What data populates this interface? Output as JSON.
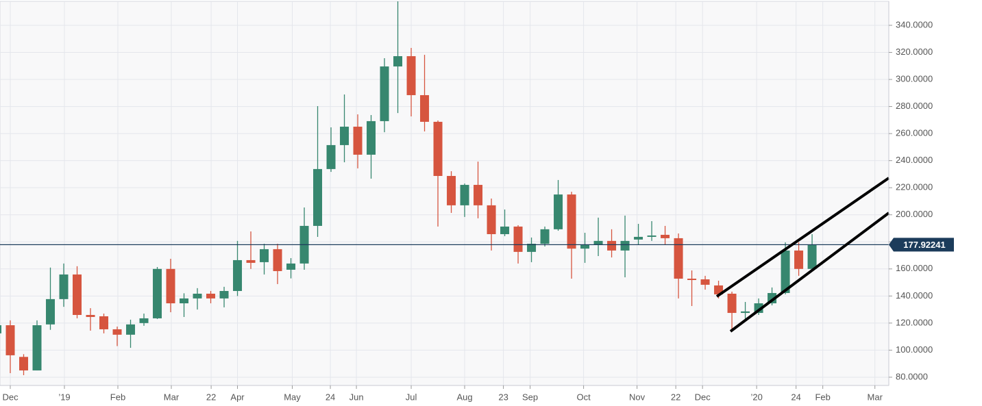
{
  "chart_data": {
    "type": "candlestick",
    "up_color": "#37876f",
    "down_color": "#d6553f",
    "last_price_color": "#1c3c5b",
    "grid": true,
    "last_price": 177.92241,
    "x": [
      -1,
      0,
      1,
      2,
      3,
      4,
      5,
      6,
      7,
      8,
      9,
      10,
      11,
      12,
      13,
      14,
      15,
      16,
      17,
      18,
      19,
      20,
      21,
      22,
      23,
      24,
      25,
      26,
      27,
      28,
      29,
      30,
      31,
      32,
      33,
      34,
      35,
      36,
      37,
      38,
      39,
      40,
      41,
      42,
      43,
      44,
      45,
      46,
      47,
      48,
      49,
      50,
      51,
      52,
      53,
      54,
      55,
      56,
      57,
      58,
      59,
      60
    ],
    "open": [
      112.4,
      118.4,
      95,
      85,
      119,
      137.7,
      155.9,
      126,
      125,
      115.4,
      111.4,
      120,
      123.5,
      160,
      134.6,
      138.2,
      141.7,
      138.2,
      143.7,
      166.5,
      165,
      174.6,
      159.4,
      164,
      191.8,
      233.8,
      251.5,
      265.1,
      244.4,
      269.2,
      309.6,
      317.2,
      288.4,
      268.7,
      228.7,
      207,
      222.1,
      207,
      185.7,
      191.3,
      172.6,
      178.6,
      189.3,
      215,
      175,
      177.6,
      180.7,
      173.6,
      181.7,
      183.7,
      185.2,
      182.7,
      152.8,
      152.3,
      147.8,
      141.7,
      127.5,
      127.5,
      134.6,
      142.2,
      173.6,
      160
    ],
    "high": [
      122,
      122,
      97,
      122,
      161,
      164,
      162,
      131,
      127,
      117.4,
      122.5,
      127,
      161.4,
      167.5,
      142,
      145.8,
      143.7,
      146.8,
      180.7,
      187.7,
      178.6,
      178.6,
      168,
      205.4,
      280.3,
      264.6,
      288.9,
      274.2,
      273.7,
      315.7,
      357.7,
      323.3,
      318.2,
      269.7,
      232.2,
      223.1,
      239.3,
      212,
      203.9,
      192.3,
      183.2,
      191.3,
      225.7,
      217,
      186.7,
      197.9,
      189.3,
      199.4,
      193.3,
      195.3,
      191.8,
      186.2,
      158.9,
      154.9,
      151.3,
      143.2,
      135.6,
      138.2,
      146.3,
      179.6,
      179.6,
      185.7
    ],
    "low": [
      110,
      83,
      81.5,
      85,
      115,
      132,
      123.5,
      114.4,
      112.4,
      103,
      101.7,
      118,
      123,
      128,
      124.5,
      130,
      134.6,
      131.6,
      140,
      160,
      155.9,
      148.8,
      153,
      159.4,
      183.7,
      231.7,
      238.8,
      234.3,
      226.7,
      261,
      275.2,
      272.7,
      261.6,
      191.3,
      201.4,
      198.4,
      197.4,
      173.6,
      184.2,
      164,
      165,
      176.6,
      188.2,
      152.8,
      164.5,
      169.5,
      168.5,
      153.8,
      177.6,
      180.7,
      178.1,
      138.2,
      132.6,
      144.7,
      138.2,
      115.4,
      122.5,
      126,
      133.1,
      141.2,
      154.9,
      158.9
    ],
    "close": [
      118.4,
      96.2,
      85,
      118.4,
      137.7,
      155.9,
      126,
      124.5,
      115.4,
      111.4,
      119,
      123.5,
      160,
      134.6,
      138.2,
      141.7,
      138.2,
      143.7,
      166.5,
      164.5,
      174.6,
      158.4,
      164,
      191.8,
      233.8,
      251.5,
      265.1,
      244.4,
      269.2,
      309.6,
      317.2,
      288.4,
      268.7,
      228.7,
      207,
      222.1,
      207,
      185.7,
      191.3,
      172.6,
      178.6,
      189.3,
      215,
      175,
      177.6,
      180.7,
      173.6,
      180.7,
      183.7,
      184.7,
      182.7,
      152.8,
      151.8,
      148.3,
      141.2,
      127.5,
      128.6,
      134.6,
      142.2,
      173.6,
      160,
      178.1
    ],
    "xlim": [
      -0.77,
      65.74
    ],
    "ylim": [
      73.9,
      358.7
    ],
    "xticks": [
      {
        "value": 0,
        "label": "Dec"
      },
      {
        "value": 4.05,
        "label": "’19"
      },
      {
        "value": 8.05,
        "label": "Feb"
      },
      {
        "value": 12.05,
        "label": "Mar"
      },
      {
        "value": 15.03,
        "label": "22"
      },
      {
        "value": 17,
        "label": "Apr"
      },
      {
        "value": 21.1,
        "label": "May"
      },
      {
        "value": 23.95,
        "label": "24"
      },
      {
        "value": 25.9,
        "label": "Jun"
      },
      {
        "value": 30,
        "label": "Jul"
      },
      {
        "value": 34,
        "label": "Aug"
      },
      {
        "value": 36.9,
        "label": "23"
      },
      {
        "value": 38.9,
        "label": "Sep"
      },
      {
        "value": 42.9,
        "label": "Oct"
      },
      {
        "value": 46.9,
        "label": "Nov"
      },
      {
        "value": 49.8,
        "label": "22"
      },
      {
        "value": 51.8,
        "label": "Dec"
      },
      {
        "value": 55.85,
        "label": "’20"
      },
      {
        "value": 58.8,
        "label": "24"
      },
      {
        "value": 60.8,
        "label": "Feb"
      },
      {
        "value": 64.7,
        "label": "Mar"
      }
    ],
    "yticks": [
      {
        "value": 80,
        "label": "80.0000"
      },
      {
        "value": 100,
        "label": "100.0000"
      },
      {
        "value": 120,
        "label": "120.0000"
      },
      {
        "value": 140,
        "label": "140.0000"
      },
      {
        "value": 160,
        "label": "160.0000"
      },
      {
        "value": 180,
        "label": "180.0000"
      },
      {
        "value": 200,
        "label": "200.0000"
      },
      {
        "value": 220,
        "label": "220.0000"
      },
      {
        "value": 240,
        "label": "240.0000"
      },
      {
        "value": 260,
        "label": "260.0000"
      },
      {
        "value": 280,
        "label": "280.0000"
      },
      {
        "value": 300,
        "label": "300.0000"
      },
      {
        "value": 320,
        "label": "320.0000"
      },
      {
        "value": 340,
        "label": "340.0000"
      }
    ]
  }
}
